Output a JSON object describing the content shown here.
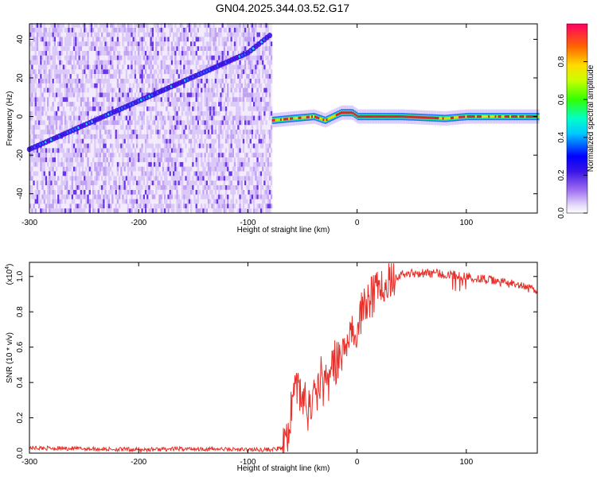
{
  "figure": {
    "title": "GN04.2025.344.03.52.G17"
  },
  "chart_data": [
    {
      "type": "heatmap",
      "xlabel": "Height of straight line (km)",
      "ylabel": "Frequency (Hz)",
      "xlim": [
        -300,
        165
      ],
      "ylim": [
        -50,
        48
      ],
      "xticks": [
        "-300",
        "-200",
        "-100",
        "0",
        "100"
      ],
      "yticks": [
        "-40",
        "-20",
        "0",
        "20",
        "40"
      ],
      "description_values": {
        "noisy_region_x": [
          -300,
          -78
        ],
        "drifting_tone": {
          "x": [
            -300,
            -100,
            -80
          ],
          "y": [
            -17,
            33,
            42
          ]
        },
        "carrier_tone": {
          "x": [
            -78,
            -60,
            -40,
            -30,
            -15,
            -5,
            0,
            40,
            80,
            100,
            165
          ],
          "y": [
            -2,
            -1,
            0,
            -2,
            2,
            2,
            0,
            0,
            -1,
            0,
            0
          ]
        }
      },
      "colorbar": {
        "label": "Normalized spectral amplitude",
        "ticks": [
          "0.0",
          "0.2",
          "0.4",
          "0.6",
          "0.8"
        ],
        "range": [
          0,
          1
        ]
      }
    },
    {
      "type": "line",
      "xlabel": "Height of straight line (km)",
      "ylabel": "SNR (10 * v/v)",
      "scale_label": "(x10",
      "scale_exp": "4",
      "scale_close": ")",
      "xlim": [
        -300,
        165
      ],
      "ylim": [
        0,
        1.08
      ],
      "xticks": [
        "-300",
        "-200",
        "-100",
        "0",
        "100"
      ],
      "yticks": [
        "0.0",
        "0.2",
        "0.4",
        "0.6",
        "0.8",
        "1.0"
      ],
      "color": "#e8302a",
      "series": [
        {
          "x": [
            -300,
            -250,
            -200,
            -150,
            -100,
            -80,
            -65,
            -60,
            -55,
            -50,
            -45,
            -40,
            -35,
            -30,
            -25,
            -20,
            -15,
            -10,
            -5,
            0,
            5,
            10,
            15,
            20,
            25,
            30,
            35,
            40,
            50,
            60,
            70,
            80,
            90,
            100,
            120,
            140,
            165
          ],
          "y": [
            0.03,
            0.025,
            0.02,
            0.025,
            0.02,
            0.02,
            0.03,
            0.25,
            0.38,
            0.32,
            0.26,
            0.33,
            0.36,
            0.38,
            0.42,
            0.5,
            0.55,
            0.62,
            0.68,
            0.72,
            0.8,
            0.85,
            0.9,
            0.95,
            0.98,
            1.0,
            1.0,
            1.01,
            1.02,
            1.02,
            1.02,
            1.01,
            1.01,
            1.0,
            0.98,
            0.96,
            0.92
          ]
        }
      ]
    }
  ]
}
